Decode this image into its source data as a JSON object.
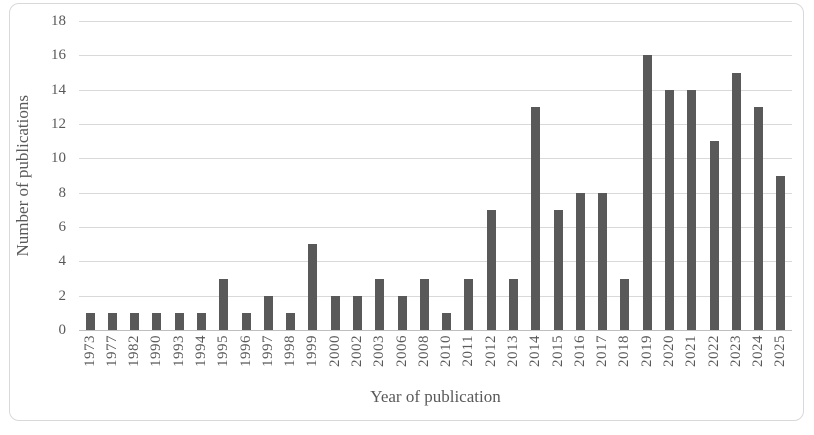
{
  "chart_data": {
    "type": "bar",
    "title": "",
    "xlabel": "Year of publication",
    "ylabel": "Number of publications",
    "categories": [
      "1973",
      "1977",
      "1982",
      "1990",
      "1993",
      "1994",
      "1995",
      "1996",
      "1997",
      "1998",
      "1999",
      "2000",
      "2002",
      "2003",
      "2006",
      "2008",
      "2010",
      "2011",
      "2012",
      "2013",
      "2014",
      "2015",
      "2016",
      "2017",
      "2018",
      "2019",
      "2020",
      "2021",
      "2022",
      "2023",
      "2024",
      "2025"
    ],
    "values": [
      1,
      1,
      1,
      1,
      1,
      1,
      3,
      1,
      2,
      1,
      5,
      2,
      2,
      3,
      2,
      3,
      1,
      3,
      7,
      3,
      13,
      7,
      8,
      8,
      3,
      16,
      14,
      14,
      11,
      15,
      13,
      9
    ],
    "ylim": [
      0,
      18
    ],
    "ytick_step": 2,
    "grid": true,
    "legend": "none",
    "colors": {
      "bar": "#595959",
      "gridline": "#D9D9D9",
      "axis_line": "#BFBFBF",
      "text": "#595959",
      "border": "#D9D9D9",
      "background": "#FFFFFF"
    }
  }
}
